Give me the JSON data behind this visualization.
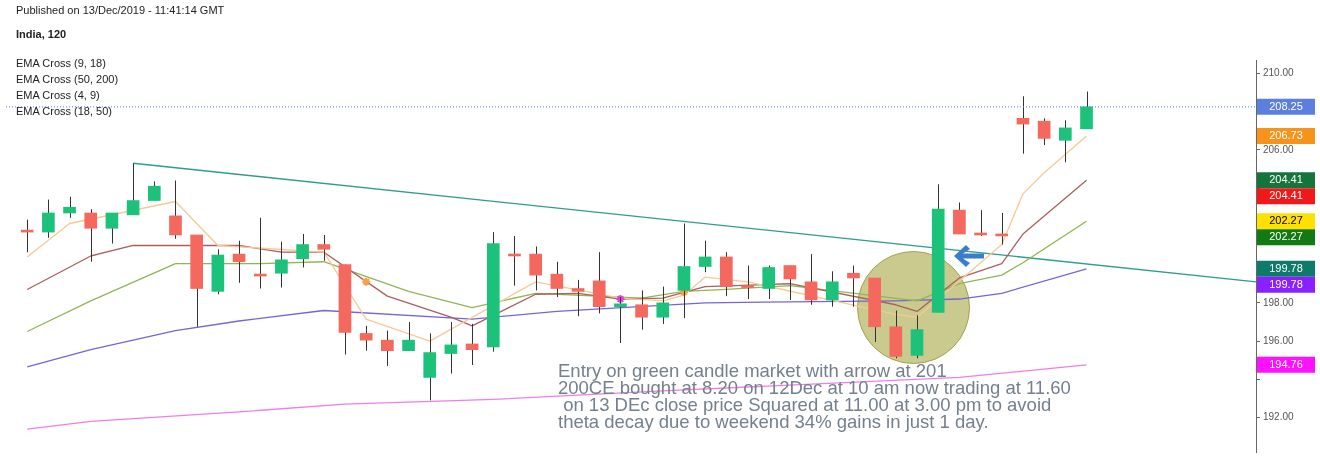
{
  "chart_data": {
    "type": "candlestick",
    "title": "India, 120",
    "categories": [
      null,
      null,
      null,
      null,
      null,
      null,
      null,
      null,
      null,
      null,
      null,
      null,
      null,
      null,
      null,
      null,
      null,
      null,
      null,
      null,
      null,
      null,
      null,
      null,
      null,
      null,
      null,
      null,
      null,
      null,
      null,
      null,
      null,
      null,
      null,
      null,
      null,
      null,
      null,
      null,
      null,
      null,
      null,
      null,
      null,
      null,
      null,
      null,
      null,
      null,
      null,
      null,
      null,
      null,
      null,
      null,
      null,
      null,
      null,
      null
    ],
    "ohlc": [
      null,
      [
        201.75,
        202.35,
        200.65,
        201.7
      ],
      [
        201.7,
        203.4,
        201.4,
        202.7
      ],
      [
        202.7,
        203.55,
        202.45,
        203.0
      ],
      [
        202.7,
        202.9,
        200.15,
        201.9
      ],
      [
        201.9,
        202.7,
        201.1,
        202.7
      ],
      [
        202.6,
        205.3,
        202.6,
        203.35
      ],
      [
        203.35,
        204.35,
        203.35,
        204.1
      ],
      [
        202.55,
        204.4,
        201.35,
        201.55
      ],
      [
        201.55,
        201.55,
        196.75,
        198.75
      ],
      [
        198.6,
        200.8,
        198.45,
        200.5
      ],
      [
        200.55,
        201.25,
        199.05,
        200.15
      ],
      [
        199.45,
        202.45,
        198.75,
        199.4
      ],
      [
        199.55,
        201.2,
        198.8,
        200.25
      ],
      [
        200.3,
        201.6,
        199.85,
        201.05
      ],
      [
        201.05,
        201.55,
        200.2,
        200.8
      ],
      [
        200.0,
        200.0,
        195.3,
        196.45
      ],
      [
        196.4,
        196.8,
        195.5,
        196.05
      ],
      [
        196.05,
        196.55,
        194.7,
        195.5
      ],
      [
        195.5,
        197.0,
        195.5,
        196.05
      ],
      [
        194.1,
        196.4,
        192.9,
        195.4
      ],
      [
        195.35,
        197.0,
        194.3,
        195.8
      ],
      [
        195.85,
        196.9,
        194.75,
        195.55
      ],
      [
        195.7,
        201.7,
        195.45,
        201.1
      ],
      [
        200.5,
        201.5,
        198.9,
        200.45
      ],
      [
        200.55,
        200.95,
        198.65,
        199.45
      ],
      [
        199.5,
        200.15,
        198.3,
        198.75
      ],
      [
        198.75,
        199.2,
        197.3,
        198.6
      ],
      [
        199.15,
        200.65,
        197.45,
        197.8
      ],
      [
        197.8,
        198.3,
        195.9,
        197.95
      ],
      [
        197.9,
        198.65,
        196.6,
        197.25
      ],
      [
        197.25,
        198.85,
        196.9,
        198.0
      ],
      [
        198.65,
        202.15,
        197.2,
        199.9
      ],
      [
        199.9,
        201.25,
        199.6,
        200.4
      ],
      [
        200.4,
        200.65,
        198.35,
        198.85
      ],
      [
        198.85,
        199.95,
        198.2,
        198.8
      ],
      [
        198.75,
        199.95,
        198.2,
        199.85
      ],
      [
        199.95,
        199.95,
        198.15,
        199.25
      ],
      [
        199.1,
        200.55,
        197.9,
        198.15
      ],
      [
        198.15,
        199.65,
        197.8,
        199.1
      ],
      [
        199.55,
        199.95,
        197.8,
        199.3
      ],
      [
        199.3,
        199.3,
        195.95,
        196.75
      ],
      [
        196.75,
        197.6,
        195.1,
        195.2
      ],
      [
        195.25,
        197.35,
        195.1,
        196.6
      ],
      [
        197.5,
        204.2,
        197.5,
        202.9
      ],
      [
        202.85,
        203.25,
        201.6,
        201.6
      ],
      [
        201.6,
        202.85,
        201.5,
        201.55
      ],
      [
        201.55,
        202.7,
        201.05,
        201.5
      ],
      [
        207.65,
        208.8,
        205.8,
        207.35
      ],
      [
        207.5,
        207.65,
        206.25,
        206.6
      ],
      [
        206.5,
        207.55,
        205.35,
        207.15
      ],
      [
        207.1,
        209.05,
        207.1,
        208.25
      ],
      null,
      null,
      null,
      null,
      null,
      null,
      null,
      null
    ],
    "colors": [
      null,
      "#f4685d",
      "#1dc27a",
      "#1dc27a",
      "#f4685d",
      "#1dc27a",
      "#1dc27a",
      "#1dc27a",
      "#f4685d",
      "#f4685d",
      "#1dc27a",
      "#f4685d",
      "#f4685d",
      "#1dc27a",
      "#1dc27a",
      "#f4685d",
      "#f4685d",
      "#f4685d",
      "#f4685d",
      "#1dc27a",
      "#1dc27a",
      "#1dc27a",
      "#f4685d",
      "#1dc27a",
      "#f4685d",
      "#f4685d",
      "#f4685d",
      "#f4685d",
      "#f4685d",
      "#1dc27a",
      "#f4685d",
      "#1dc27a",
      "#1dc27a",
      "#1dc27a",
      "#f4685d",
      "#f4685d",
      "#1dc27a",
      "#f4685d",
      "#f4685d",
      "#1dc27a",
      "#f4685d",
      "#f4685d",
      "#f4685d",
      "#1dc27a",
      "#1dc27a",
      "#f4685d",
      "#f4685d",
      "#f4685d",
      "#f4685d",
      "#f4685d",
      "#1dc27a",
      "#1dc27a",
      null,
      null,
      null,
      null,
      null,
      null,
      null,
      null
    ],
    "series": [
      {
        "type": "line",
        "color": "#f6c995",
        "values": [
          null,
          200.4,
          null,
          202.15,
          null,
          null,
          null,
          null,
          203.3,
          null,
          201.0,
          null,
          null,
          null,
          null,
          200.65,
          null,
          197.15,
          null,
          null,
          196.0,
          null,
          null,
          null,
          null,
          199.1,
          null,
          null,
          null,
          198.25,
          null,
          198.1,
          198.4,
          199.35,
          null,
          199.1,
          null,
          null,
          null,
          null,
          null,
          null,
          197.4,
          197.25,
          null,
          null,
          null,
          201.05,
          203.7,
          204.8,
          null,
          206.73,
          null,
          null,
          null,
          null,
          null,
          null,
          null,
          null
        ]
      },
      {
        "type": "line",
        "color": "#a8615c",
        "values": [
          null,
          198.7,
          null,
          null,
          200.45,
          null,
          201.0,
          null,
          null,
          null,
          null,
          201.0,
          null,
          200.65,
          null,
          200.65,
          null,
          null,
          198.35,
          null,
          null,
          197.25,
          196.8,
          null,
          null,
          198.45,
          null,
          198.5,
          null,
          198.2,
          null,
          198.25,
          null,
          198.85,
          null,
          null,
          null,
          199.0,
          null,
          null,
          null,
          null,
          197.9,
          197.55,
          null,
          199.3,
          null,
          200.05,
          201.6,
          null,
          null,
          204.41,
          null,
          null,
          null,
          null,
          null,
          null,
          null,
          null
        ]
      },
      {
        "type": "line",
        "color": "#92b556",
        "values": [
          null,
          196.5,
          null,
          null,
          198.1,
          null,
          null,
          null,
          200.05,
          null,
          null,
          null,
          200.05,
          null,
          null,
          200.15,
          null,
          null,
          null,
          198.6,
          null,
          null,
          197.75,
          null,
          null,
          198.5,
          null,
          null,
          null,
          null,
          198.25,
          null,
          198.6,
          null,
          198.7,
          null,
          null,
          198.9,
          null,
          null,
          null,
          null,
          null,
          198.1,
          null,
          199.0,
          null,
          199.45,
          200.1,
          null,
          null,
          202.27,
          null,
          null,
          null,
          null,
          null,
          null,
          null,
          null
        ]
      },
      {
        "type": "line",
        "color": "#7465d8",
        "values": [
          null,
          194.65,
          null,
          null,
          195.55,
          null,
          null,
          null,
          196.55,
          null,
          null,
          197.05,
          null,
          null,
          null,
          197.6,
          null,
          null,
          null,
          null,
          null,
          null,
          197.15,
          null,
          null,
          null,
          197.55,
          null,
          null,
          null,
          null,
          null,
          null,
          198.0,
          null,
          null,
          null,
          198.05,
          null,
          null,
          null,
          null,
          198.1,
          null,
          null,
          198.2,
          null,
          198.5,
          null,
          null,
          null,
          199.78,
          null,
          null,
          null,
          null,
          null,
          null,
          null,
          null
        ]
      },
      {
        "type": "line",
        "color": "#f07de9",
        "values": [
          null,
          191.4,
          null,
          null,
          191.8,
          null,
          null,
          null,
          null,
          null,
          null,
          192.3,
          null,
          null,
          null,
          null,
          192.7,
          null,
          null,
          null,
          null,
          null,
          null,
          192.95,
          null,
          null,
          null,
          null,
          null,
          null,
          null,
          193.4,
          null,
          null,
          null,
          null,
          null,
          null,
          null,
          null,
          null,
          null,
          null,
          null,
          null,
          194.1,
          null,
          null,
          null,
          null,
          null,
          194.76,
          null,
          null,
          null,
          null,
          null,
          null,
          null,
          null
        ]
      },
      {
        "type": "line",
        "color": "#2f9c8c",
        "values": [
          null,
          null,
          null,
          null,
          null,
          null,
          205.3,
          null,
          null,
          null,
          null,
          null,
          null,
          null,
          null,
          null,
          null,
          null,
          null,
          null,
          null,
          null,
          null,
          null,
          null,
          null,
          null,
          null,
          null,
          null,
          null,
          null,
          null,
          null,
          null,
          null,
          null,
          null,
          null,
          null,
          null,
          null,
          null,
          null,
          null,
          null,
          null,
          null,
          null,
          null,
          null,
          null,
          null,
          null,
          null,
          null,
          null,
          null,
          null,
          199.1
        ]
      },
      {
        "type": "scatter",
        "marker": "cross",
        "color": "#f5a04a",
        "values": [
          null,
          null,
          null,
          null,
          null,
          null,
          null,
          null,
          null,
          null,
          null,
          null,
          null,
          null,
          null,
          null,
          null,
          199.1,
          null,
          null,
          null,
          null,
          null,
          null,
          null,
          null,
          null,
          null,
          null,
          null,
          null,
          null,
          198.55,
          null,
          null,
          null,
          null,
          null,
          null,
          null,
          null,
          null,
          null,
          null,
          null,
          null,
          null,
          null,
          null,
          null,
          null,
          null,
          null,
          null,
          null,
          null,
          null,
          null,
          null,
          null
        ]
      },
      {
        "type": "scatter",
        "marker": "cross",
        "color": "#e040d8",
        "values": [
          null,
          null,
          null,
          null,
          null,
          null,
          null,
          null,
          null,
          null,
          null,
          null,
          null,
          null,
          null,
          null,
          null,
          null,
          null,
          null,
          null,
          null,
          null,
          null,
          null,
          null,
          null,
          null,
          null,
          198.2,
          null,
          null,
          null,
          null,
          null,
          null,
          null,
          null,
          null,
          null,
          null,
          null,
          null,
          null,
          null,
          null,
          null,
          null,
          null,
          null,
          null,
          null,
          null,
          null,
          null,
          null,
          null,
          null,
          null,
          null
        ]
      }
    ],
    "ylim": [
      190.2,
      210.7
    ],
    "yticks": [
      {
        "value": 192,
        "label": "192.00"
      },
      {
        "value": 194,
        "label": null
      },
      {
        "value": 196,
        "label": "196.00"
      },
      {
        "value": 198,
        "label": "198.00"
      },
      {
        "value": 200,
        "label": null
      },
      {
        "value": 202,
        "label": null
      },
      {
        "value": 204,
        "label": null
      },
      {
        "value": 206,
        "label": "206.00"
      },
      {
        "value": 208,
        "label": null
      },
      {
        "value": 210,
        "label": "210.00"
      }
    ],
    "tick_labels": "y",
    "marker": "none",
    "ref_lines": [
      {
        "axis": "y",
        "value": 208.25,
        "label": "208.25",
        "color": "#5b7fde",
        "line_style": "dotted"
      }
    ],
    "annotations": [
      "Published on 13/Dec/2019 - 11:41:14 GMT",
      "EMA Cross (9, 18)",
      "EMA Cross (50, 200)",
      "EMA Cross (4, 9)",
      "EMA Cross (18, 50)",
      "Entry on green candle market with arrow at 201\n200CE bought at 8.20 on 12Dec at 10 am now trading at 11.60\n on 13 DEc close price Squared at 11.00 at 3.00 pm to avoid\ntheta decay due to weekend 34% gains in just 1 day.",
      "206.73",
      "204.41",
      "204.41",
      "202.27",
      "202.27",
      "199.78",
      "199.78",
      "194.76"
    ]
  }
}
